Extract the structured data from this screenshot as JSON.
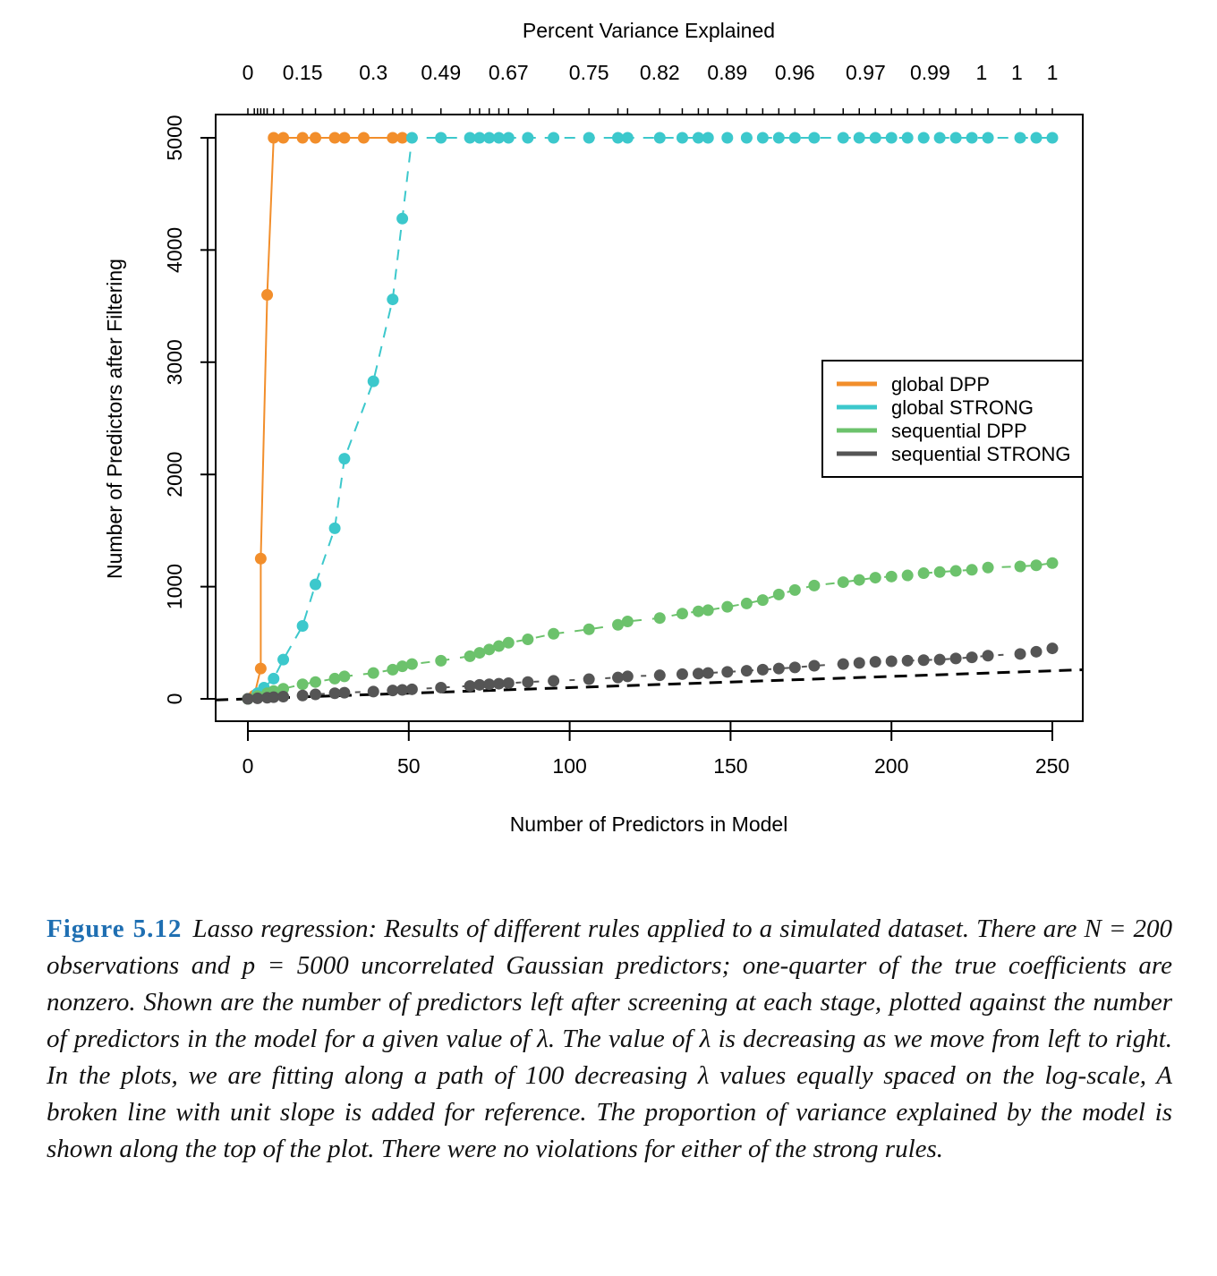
{
  "chart_data": {
    "type": "scatter",
    "title": "",
    "top_axis_title": "Percent Variance Explained",
    "top_axis_ticks": [
      {
        "x": 0,
        "label": "0"
      },
      {
        "x": 17,
        "label": "0.15"
      },
      {
        "x": 39,
        "label": "0.3"
      },
      {
        "x": 60,
        "label": "0.49"
      },
      {
        "x": 81,
        "label": "0.67"
      },
      {
        "x": 106,
        "label": "0.75"
      },
      {
        "x": 128,
        "label": "0.82"
      },
      {
        "x": 149,
        "label": "0.89"
      },
      {
        "x": 170,
        "label": "0.96"
      },
      {
        "x": 192,
        "label": "0.97"
      },
      {
        "x": 212,
        "label": "0.99"
      },
      {
        "x": 228,
        "label": "1"
      },
      {
        "x": 239,
        "label": "1"
      },
      {
        "x": 250,
        "label": "1"
      }
    ],
    "xlabel": "Number of Predictors in Model",
    "ylabel": "Number of Predictors after Filtering",
    "xlim": [
      -10,
      260
    ],
    "ylim": [
      -200,
      5200
    ],
    "xticks": [
      0,
      50,
      100,
      150,
      200,
      250
    ],
    "yticks": [
      0,
      1000,
      2000,
      3000,
      4000,
      5000
    ],
    "legend_position": "right",
    "colors": {
      "global_dpp": "#f28e2b",
      "global_strong": "#3cc8cc",
      "sequential_dpp": "#6cc26c",
      "sequential_strong": "#555555",
      "reference": "#000000"
    },
    "series": [
      {
        "name": "global DPP",
        "color": "#f28e2b",
        "x": [
          0,
          2,
          4,
          4,
          6,
          8,
          11,
          17,
          21,
          27,
          30,
          36,
          45,
          48
        ],
        "y": [
          0,
          30,
          270,
          1250,
          3600,
          5000,
          5000,
          5000,
          5000,
          5000,
          5000,
          5000,
          5000,
          5000
        ]
      },
      {
        "name": "global STRONG",
        "color": "#3cc8cc",
        "x": [
          0,
          3,
          5,
          8,
          11,
          17,
          21,
          27,
          30,
          39,
          45,
          48,
          51,
          60,
          69,
          72,
          75,
          78,
          81,
          87,
          95,
          106,
          115,
          118,
          128,
          135,
          140,
          143,
          149,
          155,
          160,
          165,
          170,
          176,
          185,
          190,
          195,
          200,
          205,
          210,
          215,
          220,
          225,
          230,
          240,
          245,
          250
        ],
        "y": [
          0,
          50,
          100,
          180,
          350,
          650,
          1020,
          1520,
          2140,
          2830,
          3560,
          4280,
          5000,
          5000,
          5000,
          5000,
          5000,
          5000,
          5000,
          5000,
          5000,
          5000,
          5000,
          5000,
          5000,
          5000,
          5000,
          5000,
          5000,
          5000,
          5000,
          5000,
          5000,
          5000,
          5000,
          5000,
          5000,
          5000,
          5000,
          5000,
          5000,
          5000,
          5000,
          5000,
          5000,
          5000,
          5000
        ]
      },
      {
        "name": "sequential DPP",
        "color": "#6cc26c",
        "x": [
          0,
          3,
          6,
          8,
          11,
          17,
          21,
          27,
          30,
          39,
          45,
          48,
          51,
          60,
          69,
          72,
          75,
          78,
          81,
          87,
          95,
          106,
          115,
          118,
          128,
          135,
          140,
          143,
          149,
          155,
          160,
          165,
          170,
          176,
          185,
          190,
          195,
          200,
          205,
          210,
          215,
          220,
          225,
          230,
          240,
          245,
          250
        ],
        "y": [
          0,
          25,
          50,
          70,
          90,
          130,
          150,
          180,
          200,
          230,
          260,
          290,
          310,
          340,
          380,
          410,
          440,
          470,
          500,
          530,
          580,
          620,
          660,
          690,
          720,
          760,
          780,
          790,
          820,
          850,
          880,
          930,
          970,
          1010,
          1040,
          1060,
          1080,
          1090,
          1100,
          1120,
          1130,
          1140,
          1150,
          1170,
          1180,
          1190,
          1210
        ]
      },
      {
        "name": "sequential STRONG",
        "color": "#555555",
        "x": [
          0,
          3,
          6,
          8,
          11,
          17,
          21,
          27,
          30,
          39,
          45,
          48,
          51,
          60,
          69,
          72,
          75,
          78,
          81,
          87,
          95,
          106,
          115,
          118,
          128,
          135,
          140,
          143,
          149,
          155,
          160,
          165,
          170,
          176,
          185,
          190,
          195,
          200,
          205,
          210,
          215,
          220,
          225,
          230,
          240,
          245,
          250
        ],
        "y": [
          0,
          5,
          10,
          15,
          20,
          30,
          40,
          50,
          55,
          65,
          75,
          80,
          85,
          100,
          115,
          125,
          130,
          135,
          140,
          150,
          160,
          175,
          190,
          200,
          210,
          220,
          225,
          230,
          240,
          250,
          260,
          270,
          280,
          295,
          310,
          320,
          330,
          335,
          340,
          345,
          350,
          360,
          370,
          385,
          400,
          420,
          450
        ]
      }
    ],
    "reference_line": {
      "slope": 1,
      "intercept": 0,
      "style": "dashed"
    }
  },
  "caption": {
    "label": "Figure 5.12",
    "text": "Lasso regression: Results of different rules applied to a simulated dataset. There are N = 200 observations and p = 5000 uncorrelated Gaussian predictors; one-quarter of the true coefficients are nonzero. Shown are the number of predictors left after screening at each stage, plotted against the number of predictors in the model for a given value of λ. The value of λ is decreasing as we move from left to right. In the plots, we are fitting along a path of 100 decreasing λ values equally spaced on the log-scale, A broken line with unit slope is added for reference. The proportion of variance explained by the model is shown along the top of the plot. There were no violations for either of the strong rules."
  }
}
